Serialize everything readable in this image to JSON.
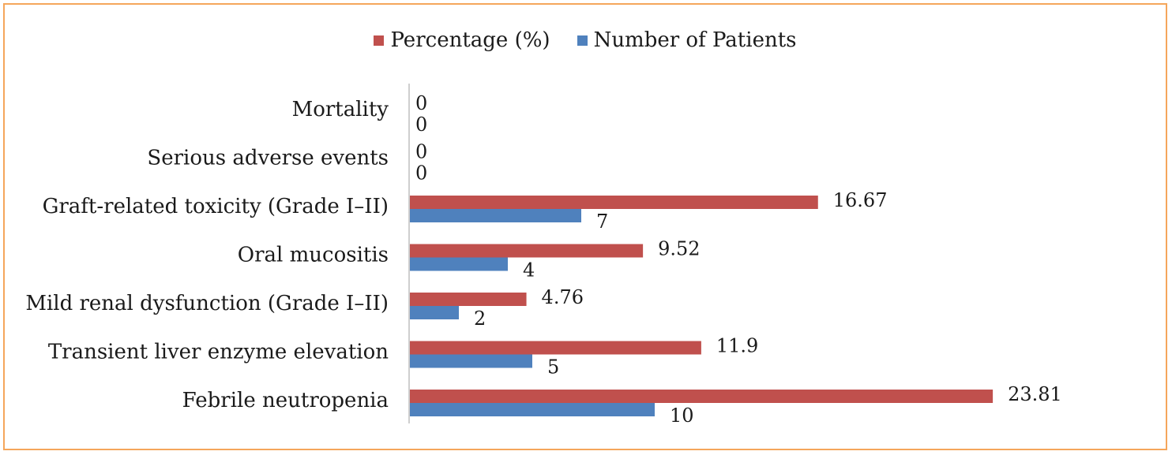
{
  "chart_data": {
    "type": "bar",
    "orientation": "horizontal",
    "categories": [
      "Mortality",
      "Serious adverse events",
      "Graft-related toxicity (Grade I–II)",
      "Oral mucositis",
      "Mild renal dysfunction (Grade I–II)",
      "Transient liver enzyme elevation",
      "Febrile neutropenia"
    ],
    "series": [
      {
        "name": "Percentage (%)",
        "color": "#c0504d",
        "values": [
          0,
          0,
          16.67,
          9.52,
          4.76,
          11.9,
          23.81
        ]
      },
      {
        "name": "Number of Patients",
        "color": "#4f81bd",
        "values": [
          0,
          0,
          7,
          4,
          2,
          5,
          10
        ]
      }
    ],
    "data_labels": true,
    "legend_position": "top",
    "grid": false
  }
}
